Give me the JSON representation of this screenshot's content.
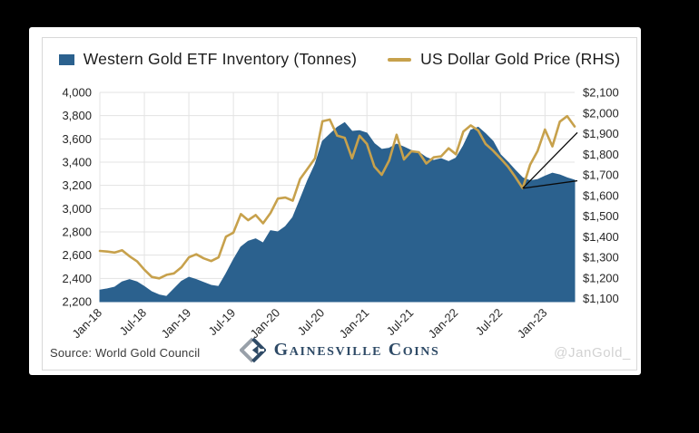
{
  "colors": {
    "area": "#2B618E",
    "line": "#C7A14C",
    "grid": "#E3E3E3",
    "axis_text": "#262626",
    "annotation": "#0a0a0a",
    "brand_navy": "#2e4a66",
    "brand_gray": "#98a0a9"
  },
  "legend": {
    "inventory_label": "Western Gold ETF Inventory (Tonnes)",
    "gold_label": "US Dollar Gold Price (RHS)"
  },
  "footer": {
    "source": "Source: World Gold Council",
    "brand": "Gainesville Coins",
    "watermark": "@JanGold_"
  },
  "chart_data": {
    "type": "area",
    "title": "",
    "legend_position": "top-center",
    "grid": true,
    "categories": [
      "Jan-18",
      "Feb-18",
      "Mar-18",
      "Apr-18",
      "May-18",
      "Jun-18",
      "Jul-18",
      "Aug-18",
      "Sep-18",
      "Oct-18",
      "Nov-18",
      "Dec-18",
      "Jan-19",
      "Feb-19",
      "Mar-19",
      "Apr-19",
      "May-19",
      "Jun-19",
      "Jul-19",
      "Aug-19",
      "Sep-19",
      "Oct-19",
      "Nov-19",
      "Dec-19",
      "Jan-20",
      "Feb-20",
      "Mar-20",
      "Apr-20",
      "May-20",
      "Jun-20",
      "Jul-20",
      "Aug-20",
      "Sep-20",
      "Oct-20",
      "Nov-20",
      "Dec-20",
      "Jan-21",
      "Feb-21",
      "Mar-21",
      "Apr-21",
      "May-21",
      "Jun-21",
      "Jul-21",
      "Aug-21",
      "Sep-21",
      "Oct-21",
      "Nov-21",
      "Dec-21",
      "Jan-22",
      "Feb-22",
      "Mar-22",
      "Apr-22",
      "May-22",
      "Jun-22",
      "Jul-22",
      "Aug-22",
      "Sep-22",
      "Oct-22",
      "Nov-22",
      "Dec-22",
      "Jan-23",
      "Feb-23",
      "Mar-23",
      "Apr-23",
      "May-23"
    ],
    "series": [
      {
        "name": "Western Gold ETF Inventory (Tonnes)",
        "type": "area",
        "axis": "left",
        "color": "#2B618E",
        "values": [
          2300,
          2310,
          2325,
          2370,
          2390,
          2370,
          2330,
          2285,
          2258,
          2245,
          2310,
          2375,
          2410,
          2390,
          2365,
          2340,
          2330,
          2440,
          2560,
          2670,
          2720,
          2740,
          2705,
          2810,
          2800,
          2845,
          2925,
          3080,
          3240,
          3380,
          3580,
          3640,
          3700,
          3740,
          3665,
          3670,
          3650,
          3560,
          3510,
          3520,
          3555,
          3530,
          3500,
          3485,
          3440,
          3415,
          3430,
          3405,
          3435,
          3540,
          3675,
          3700,
          3645,
          3580,
          3465,
          3400,
          3330,
          3265,
          3240,
          3250,
          3280,
          3305,
          3290,
          3265,
          3245
        ]
      },
      {
        "name": "US Dollar Gold Price (RHS)",
        "type": "line",
        "axis": "right",
        "color": "#C7A14C",
        "values": [
          1331,
          1328,
          1323,
          1334,
          1305,
          1281,
          1240,
          1205,
          1198,
          1215,
          1222,
          1252,
          1300,
          1315,
          1295,
          1282,
          1300,
          1400,
          1420,
          1510,
          1480,
          1505,
          1465,
          1515,
          1585,
          1590,
          1575,
          1680,
          1730,
          1780,
          1960,
          1968,
          1890,
          1880,
          1780,
          1890,
          1850,
          1740,
          1700,
          1770,
          1895,
          1775,
          1815,
          1810,
          1755,
          1785,
          1790,
          1829,
          1800,
          1910,
          1940,
          1915,
          1850,
          1818,
          1780,
          1740,
          1690,
          1635,
          1750,
          1815,
          1920,
          1838,
          1958,
          1985,
          1935
        ]
      }
    ],
    "left_axis": {
      "min": 2200,
      "max": 4000,
      "ticks": [
        "4,000",
        "3,800",
        "3,600",
        "3,400",
        "3,200",
        "3,000",
        "2,800",
        "2,600",
        "2,400",
        "2,200"
      ]
    },
    "right_axis": {
      "min": 1100,
      "max": 2100,
      "ticks": [
        "$2,100",
        "$2,000",
        "$1,900",
        "$1,800",
        "$1,700",
        "$1,600",
        "$1,500",
        "$1,400",
        "$1,300",
        "$1,200",
        "$1,100"
      ]
    },
    "x_ticks": {
      "labels": [
        "Jan-18",
        "Jul-18",
        "Jan-19",
        "Jul-19",
        "Jan-20",
        "Jul-20",
        "Jan-21",
        "Jul-21",
        "Jan-22",
        "Jul-22",
        "Jan-23"
      ],
      "indices": [
        0,
        6,
        12,
        18,
        24,
        30,
        36,
        42,
        48,
        54,
        60
      ]
    },
    "annotation": {
      "shape": "divergence-wedge",
      "vertex_month": "Oct-22",
      "vertex_index": 57,
      "vertex_price": 1635,
      "upper_end_price": 1905,
      "lower_end_tonnes": 3240,
      "color": "#0a0a0a"
    }
  }
}
